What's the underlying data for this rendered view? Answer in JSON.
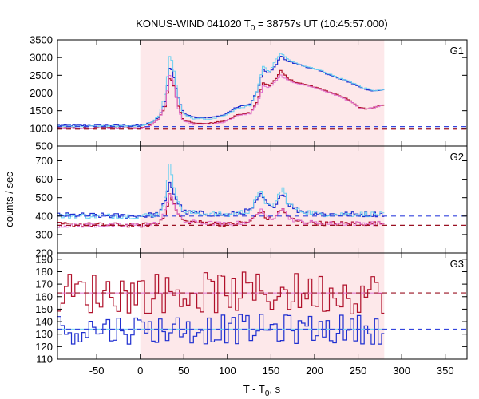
{
  "chart_data": {
    "type": "line",
    "title_main": "KONUS-WIND 041020 T",
    "title_sub": "0",
    "title_rest": " = 38757s UT (10:45:57.000)",
    "xlabel_main": "T - T",
    "xlabel_sub": "0",
    "xlabel_rest": ", s",
    "ylabel": "counts / sec",
    "xlim": [
      -95,
      375
    ],
    "xticks": [
      "-50",
      "0",
      "50",
      "100",
      "150",
      "200",
      "250",
      "300",
      "350"
    ],
    "shaded_interval": [
      0,
      280
    ],
    "colors": {
      "shade": "#fde8ea",
      "total_blue": "#1f2fd0",
      "total_red": "#b0102a",
      "detail_cyan": "#6ad0f0",
      "detail_pink": "#e070d0",
      "bg_blue": "#3344dd",
      "bg_red": "#991122"
    },
    "panels": [
      {
        "label": "G1",
        "ylim": [
          500,
          3500
        ],
        "yticks": [
          "3500",
          "3000",
          "2500",
          "2000",
          "1500",
          "1000",
          "500"
        ],
        "yticks_values": [
          3500,
          3000,
          2500,
          2000,
          1500,
          1000,
          500
        ],
        "background": {
          "blue": 1050,
          "red": 980
        },
        "series": [
          {
            "color_key": "total_blue",
            "base": 1080,
            "noise": 18,
            "knots": [
              [
                -95,
                1080
              ],
              [
                0,
                1080
              ],
              [
                10,
                1150
              ],
              [
                20,
                1300
              ],
              [
                28,
                1800
              ],
              [
                33,
                2800
              ],
              [
                37,
                2500
              ],
              [
                42,
                1900
              ],
              [
                48,
                1450
              ],
              [
                60,
                1320
              ],
              [
                80,
                1300
              ],
              [
                95,
                1380
              ],
              [
                110,
                1600
              ],
              [
                125,
                1680
              ],
              [
                133,
                2050
              ],
              [
                140,
                2650
              ],
              [
                147,
                2550
              ],
              [
                155,
                2800
              ],
              [
                160,
                3050
              ],
              [
                168,
                2900
              ],
              [
                178,
                2820
              ],
              [
                195,
                2700
              ],
              [
                210,
                2580
              ],
              [
                225,
                2420
              ],
              [
                240,
                2300
              ],
              [
                255,
                2120
              ],
              [
                270,
                2050
              ],
              [
                280,
                2100
              ]
            ]
          },
          {
            "color_key": "detail_cyan",
            "base": 1080,
            "noise": 18,
            "knots": [
              [
                -95,
                1060
              ],
              [
                0,
                1060
              ],
              [
                10,
                1150
              ],
              [
                20,
                1350
              ],
              [
                28,
                2000
              ],
              [
                33,
                3150
              ],
              [
                37,
                2700
              ],
              [
                42,
                1900
              ],
              [
                48,
                1400
              ],
              [
                60,
                1280
              ],
              [
                80,
                1260
              ],
              [
                95,
                1350
              ],
              [
                110,
                1550
              ],
              [
                125,
                1650
              ],
              [
                133,
                2050
              ],
              [
                140,
                2750
              ],
              [
                147,
                2600
              ],
              [
                155,
                2950
              ],
              [
                160,
                3120
              ],
              [
                168,
                2950
              ],
              [
                178,
                2830
              ],
              [
                195,
                2720
              ],
              [
                210,
                2600
              ],
              [
                225,
                2440
              ],
              [
                240,
                2320
              ],
              [
                255,
                2140
              ],
              [
                270,
                2060
              ],
              [
                280,
                2100
              ]
            ]
          },
          {
            "color_key": "total_red",
            "base": 1000,
            "noise": 15,
            "knots": [
              [
                -95,
                1010
              ],
              [
                0,
                1010
              ],
              [
                10,
                1080
              ],
              [
                20,
                1250
              ],
              [
                28,
                1650
              ],
              [
                33,
                2500
              ],
              [
                37,
                2250
              ],
              [
                42,
                1650
              ],
              [
                48,
                1250
              ],
              [
                60,
                1150
              ],
              [
                80,
                1150
              ],
              [
                95,
                1200
              ],
              [
                110,
                1380
              ],
              [
                125,
                1450
              ],
              [
                133,
                1750
              ],
              [
                140,
                2300
              ],
              [
                147,
                2200
              ],
              [
                155,
                2400
              ],
              [
                160,
                2650
              ],
              [
                168,
                2400
              ],
              [
                178,
                2300
              ],
              [
                195,
                2200
              ],
              [
                210,
                2080
              ],
              [
                225,
                1950
              ],
              [
                240,
                1780
              ],
              [
                250,
                1580
              ],
              [
                260,
                1550
              ],
              [
                270,
                1620
              ],
              [
                280,
                1680
              ]
            ]
          },
          {
            "color_key": "detail_pink",
            "base": 1000,
            "noise": 15,
            "knots": [
              [
                -95,
                1000
              ],
              [
                0,
                1000
              ],
              [
                10,
                1080
              ],
              [
                20,
                1250
              ],
              [
                28,
                1700
              ],
              [
                33,
                2600
              ],
              [
                37,
                2300
              ],
              [
                42,
                1600
              ],
              [
                48,
                1200
              ],
              [
                60,
                1120
              ],
              [
                80,
                1120
              ],
              [
                95,
                1180
              ],
              [
                110,
                1350
              ],
              [
                125,
                1420
              ],
              [
                133,
                1700
              ],
              [
                140,
                2200
              ],
              [
                147,
                2150
              ],
              [
                155,
                2350
              ],
              [
                160,
                2500
              ],
              [
                168,
                2350
              ],
              [
                178,
                2280
              ],
              [
                195,
                2180
              ],
              [
                210,
                2060
              ],
              [
                225,
                1930
              ],
              [
                240,
                1760
              ],
              [
                250,
                1570
              ],
              [
                260,
                1540
              ],
              [
                270,
                1610
              ],
              [
                280,
                1670
              ]
            ]
          }
        ]
      },
      {
        "label": "G2",
        "ylim": [
          200,
          780
        ],
        "yticks": [
          "700",
          "600",
          "500",
          "400",
          "300",
          "200"
        ],
        "yticks_values": [
          700,
          600,
          500,
          400,
          300,
          200
        ],
        "background": {
          "blue": 400,
          "red": 350
        },
        "series": [
          {
            "color_key": "total_blue",
            "base": 400,
            "noise": 14,
            "knots": [
              [
                -95,
                405
              ],
              [
                0,
                400
              ],
              [
                20,
                410
              ],
              [
                28,
                480
              ],
              [
                33,
                600
              ],
              [
                36,
                540
              ],
              [
                42,
                470
              ],
              [
                50,
                420
              ],
              [
                100,
                405
              ],
              [
                125,
                430
              ],
              [
                133,
                480
              ],
              [
                138,
                520
              ],
              [
                143,
                470
              ],
              [
                150,
                440
              ],
              [
                158,
                500
              ],
              [
                163,
                530
              ],
              [
                168,
                470
              ],
              [
                180,
                430
              ],
              [
                210,
                410
              ],
              [
                280,
                410
              ]
            ]
          },
          {
            "color_key": "detail_cyan",
            "base": 400,
            "noise": 14,
            "knots": [
              [
                -95,
                400
              ],
              [
                0,
                400
              ],
              [
                20,
                410
              ],
              [
                28,
                500
              ],
              [
                33,
                710
              ],
              [
                36,
                600
              ],
              [
                42,
                470
              ],
              [
                50,
                420
              ],
              [
                100,
                405
              ],
              [
                125,
                430
              ],
              [
                133,
                500
              ],
              [
                138,
                545
              ],
              [
                143,
                470
              ],
              [
                150,
                440
              ],
              [
                158,
                520
              ],
              [
                163,
                550
              ],
              [
                168,
                470
              ],
              [
                180,
                430
              ],
              [
                210,
                410
              ],
              [
                280,
                410
              ]
            ]
          },
          {
            "color_key": "total_red",
            "base": 350,
            "noise": 12,
            "knots": [
              [
                -95,
                355
              ],
              [
                0,
                350
              ],
              [
                20,
                360
              ],
              [
                28,
                420
              ],
              [
                33,
                520
              ],
              [
                36,
                480
              ],
              [
                42,
                410
              ],
              [
                50,
                370
              ],
              [
                100,
                355
              ],
              [
                125,
                370
              ],
              [
                133,
                410
              ],
              [
                138,
                430
              ],
              [
                143,
                390
              ],
              [
                150,
                380
              ],
              [
                158,
                420
              ],
              [
                163,
                440
              ],
              [
                168,
                395
              ],
              [
                180,
                370
              ],
              [
                210,
                360
              ],
              [
                280,
                360
              ]
            ]
          },
          {
            "color_key": "detail_pink",
            "base": 350,
            "noise": 12,
            "knots": [
              [
                -95,
                350
              ],
              [
                0,
                350
              ],
              [
                20,
                360
              ],
              [
                28,
                430
              ],
              [
                33,
                540
              ],
              [
                36,
                490
              ],
              [
                42,
                410
              ],
              [
                50,
                370
              ],
              [
                100,
                355
              ],
              [
                125,
                370
              ],
              [
                133,
                415
              ],
              [
                138,
                440
              ],
              [
                143,
                390
              ],
              [
                150,
                380
              ],
              [
                158,
                430
              ],
              [
                163,
                450
              ],
              [
                168,
                395
              ],
              [
                180,
                370
              ],
              [
                210,
                360
              ],
              [
                280,
                360
              ]
            ]
          }
        ]
      },
      {
        "label": "G3",
        "ylim": [
          110,
          195
        ],
        "yticks": [
          "190",
          "180",
          "170",
          "160",
          "150",
          "140",
          "130",
          "120",
          "110"
        ],
        "yticks_values": [
          190,
          180,
          170,
          160,
          150,
          140,
          130,
          120,
          110
        ],
        "background": {
          "blue": 134,
          "red": 163
        },
        "series": [
          {
            "color_key": "total_red",
            "base": 163,
            "noise": 12,
            "knots": [
              [
                -95,
                163
              ],
              [
                280,
                163
              ]
            ]
          },
          {
            "color_key": "detail_pink",
            "base": 163,
            "noise": 0,
            "knots": [
              [
                -95,
                163
              ],
              [
                280,
                163
              ]
            ]
          },
          {
            "color_key": "total_blue",
            "base": 134,
            "noise": 10,
            "knots": [
              [
                -95,
                134
              ],
              [
                280,
                134
              ]
            ]
          },
          {
            "color_key": "detail_cyan",
            "base": 134,
            "noise": 0,
            "knots": [
              [
                -95,
                134
              ],
              [
                280,
                134
              ]
            ]
          }
        ]
      }
    ]
  }
}
